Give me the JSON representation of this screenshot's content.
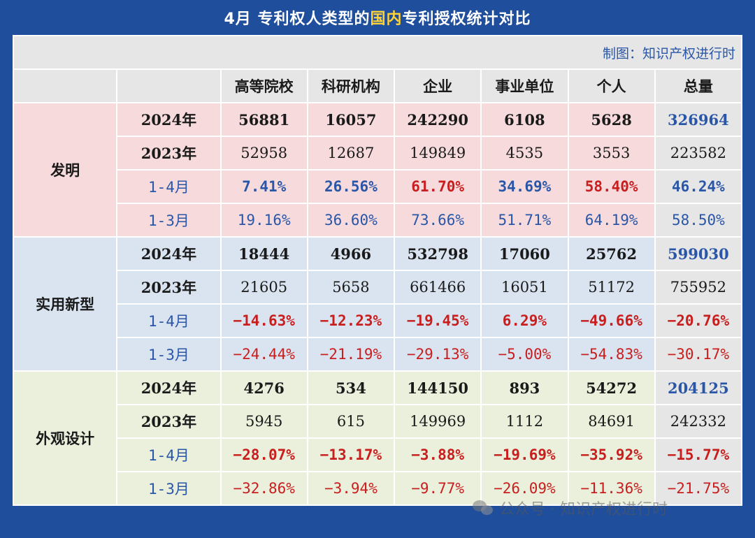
{
  "title": {
    "prefix": "4月  专利权人类型的",
    "highlight": "国内",
    "suffix": "专利授权统计对比"
  },
  "credit": "制图：知识产权进行时",
  "columns": [
    "高等院校",
    "科研机构",
    "企业",
    "事业单位",
    "个人",
    "总量"
  ],
  "sections": {
    "invention": {
      "name": "发明",
      "rows": [
        {
          "label": "2024年",
          "values": [
            "56881",
            "16057",
            "242290",
            "6108",
            "5628",
            "326964"
          ]
        },
        {
          "label": "2023年",
          "values": [
            "52958",
            "12687",
            "149849",
            "4535",
            "3553",
            "223582"
          ]
        },
        {
          "label": "1-4月",
          "values": [
            "7.41%",
            "26.56%",
            "61.70%",
            "34.69%",
            "58.40%",
            "46.24%"
          ]
        },
        {
          "label": "1-3月",
          "values": [
            "19.16%",
            "36.60%",
            "73.66%",
            "51.71%",
            "64.19%",
            "58.50%"
          ]
        }
      ]
    },
    "utility": {
      "name": "实用新型",
      "rows": [
        {
          "label": "2024年",
          "values": [
            "18444",
            "4966",
            "532798",
            "17060",
            "25762",
            "599030"
          ]
        },
        {
          "label": "2023年",
          "values": [
            "21605",
            "5658",
            "661466",
            "16051",
            "51172",
            "755952"
          ]
        },
        {
          "label": "1-4月",
          "values": [
            "-14.63%",
            "-12.23%",
            "-19.45%",
            "6.29%",
            "-49.66%",
            "-20.76%"
          ]
        },
        {
          "label": "1-3月",
          "values": [
            "-24.44%",
            "-21.19%",
            "-29.13%",
            "-5.00%",
            "-54.83%",
            "-30.17%"
          ]
        }
      ]
    },
    "design": {
      "name": "外观设计",
      "rows": [
        {
          "label": "2024年",
          "values": [
            "4276",
            "534",
            "144150",
            "893",
            "54272",
            "204125"
          ]
        },
        {
          "label": "2023年",
          "values": [
            "5945",
            "615",
            "149969",
            "1112",
            "84691",
            "242332"
          ]
        },
        {
          "label": "1-4月",
          "values": [
            "-28.07%",
            "-13.17%",
            "-3.88%",
            "-19.69%",
            "-35.92%",
            "-15.77%"
          ]
        },
        {
          "label": "1-3月",
          "values": [
            "-32.86%",
            "-3.94%",
            "-9.77%",
            "-26.09%",
            "-11.36%",
            "-21.75%"
          ]
        }
      ]
    }
  },
  "watermark": "公众号 · 知识产权进行时",
  "colors": {
    "background": "#1e4e9c",
    "highlight": "#ffd23a",
    "invention_bg": "#f6dadc",
    "utility_bg": "#dae4f0",
    "design_bg": "#eaf0dc",
    "header_bg": "#e6e6e6",
    "positive": "#2a56a8",
    "negative": "#c81e1e"
  }
}
